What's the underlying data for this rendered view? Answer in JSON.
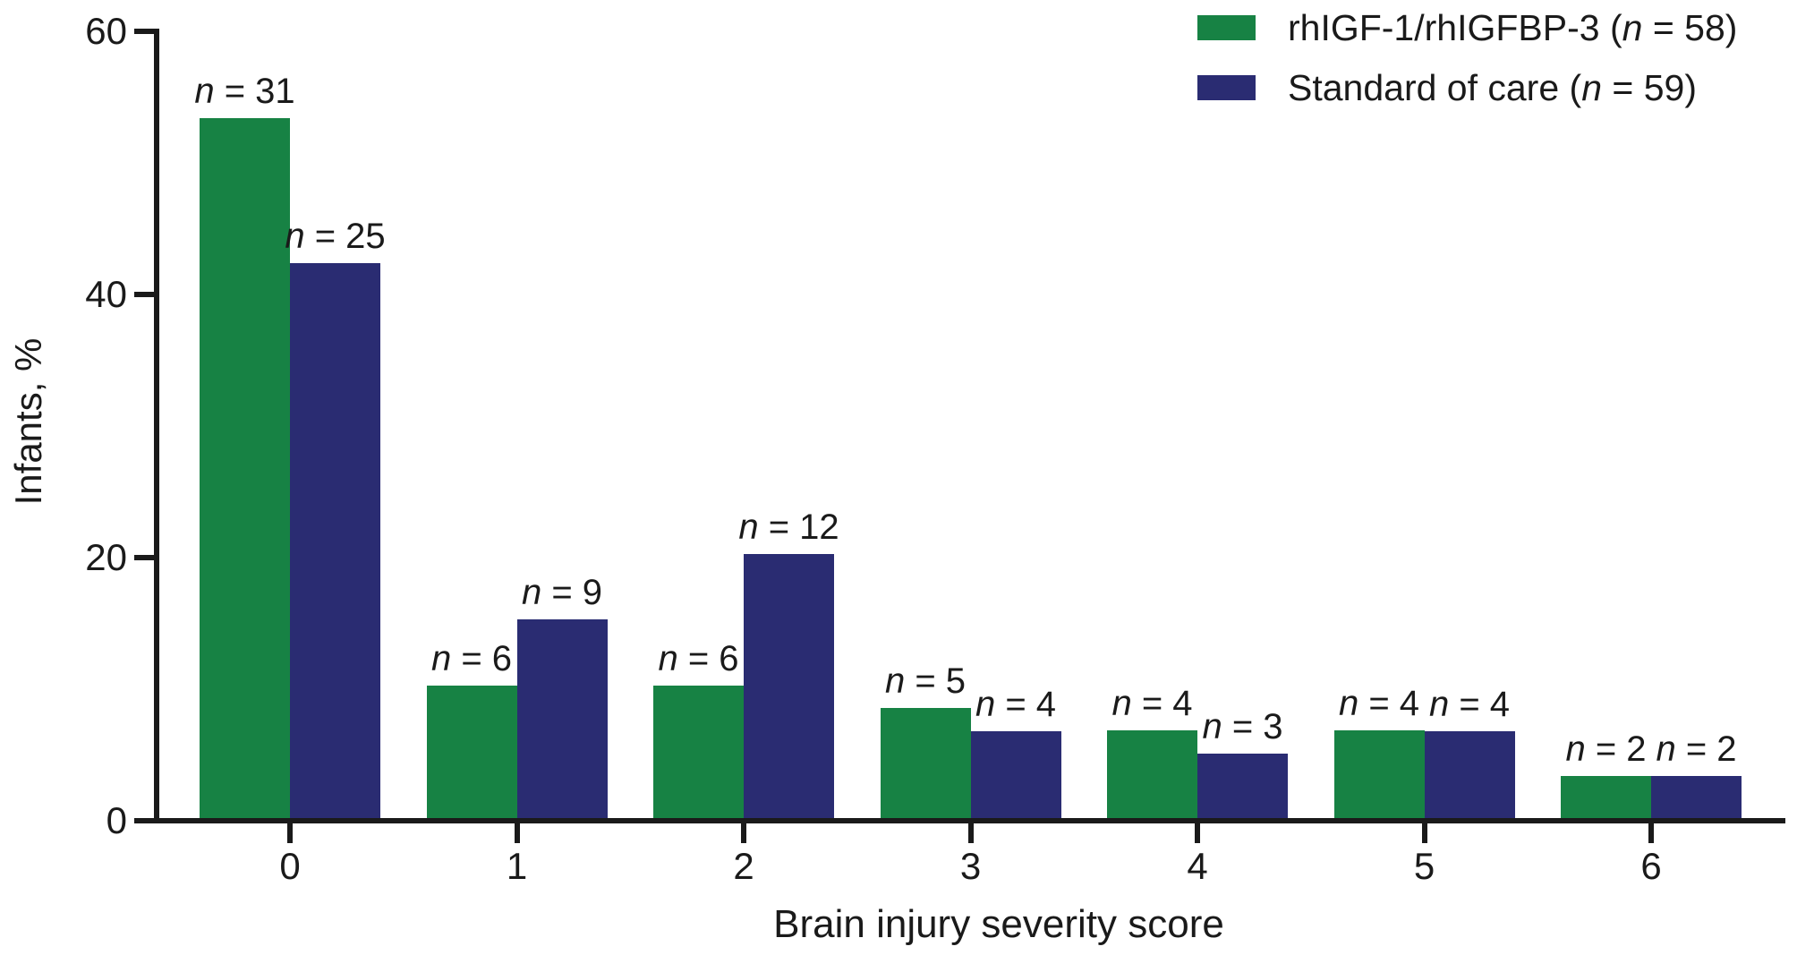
{
  "chart_data": {
    "type": "bar",
    "title": "",
    "xlabel": "Brain injury severity score",
    "ylabel": "Infants, %",
    "categories": [
      "0",
      "1",
      "2",
      "3",
      "4",
      "5",
      "6"
    ],
    "yticks": [
      0,
      20,
      40,
      60
    ],
    "ytick_labels": [
      "0",
      "20",
      "40",
      "60"
    ],
    "ylim": [
      0,
      60
    ],
    "grid": false,
    "legend_position": "top-right",
    "axis_color": "#1a1a1a",
    "text_color": "#1a1a1a",
    "series": [
      {
        "id": "rhigf",
        "name": "rhIGF-1/rhIGFBP-3 (n = 58)",
        "color": "#178244",
        "total": 58,
        "counts": [
          31,
          6,
          6,
          5,
          4,
          4,
          2
        ],
        "percent": [
          53.4,
          10.3,
          10.3,
          8.6,
          6.9,
          6.9,
          3.4
        ],
        "bar_labels": [
          "n = 31",
          "n = 6",
          "n = 6",
          "n = 5",
          "n = 4",
          "n = 4",
          "n = 2"
        ]
      },
      {
        "id": "soc",
        "name": "Standard of care (n = 59)",
        "color": "#2A2C72",
        "total": 59,
        "counts": [
          25,
          9,
          12,
          4,
          3,
          4,
          2
        ],
        "percent": [
          42.4,
          15.3,
          20.3,
          6.8,
          5.1,
          6.8,
          3.4
        ],
        "bar_labels": [
          "n = 25",
          "n = 9",
          "n = 12",
          "n = 4",
          "n = 3",
          "n = 4",
          "n = 2"
        ]
      }
    ]
  }
}
